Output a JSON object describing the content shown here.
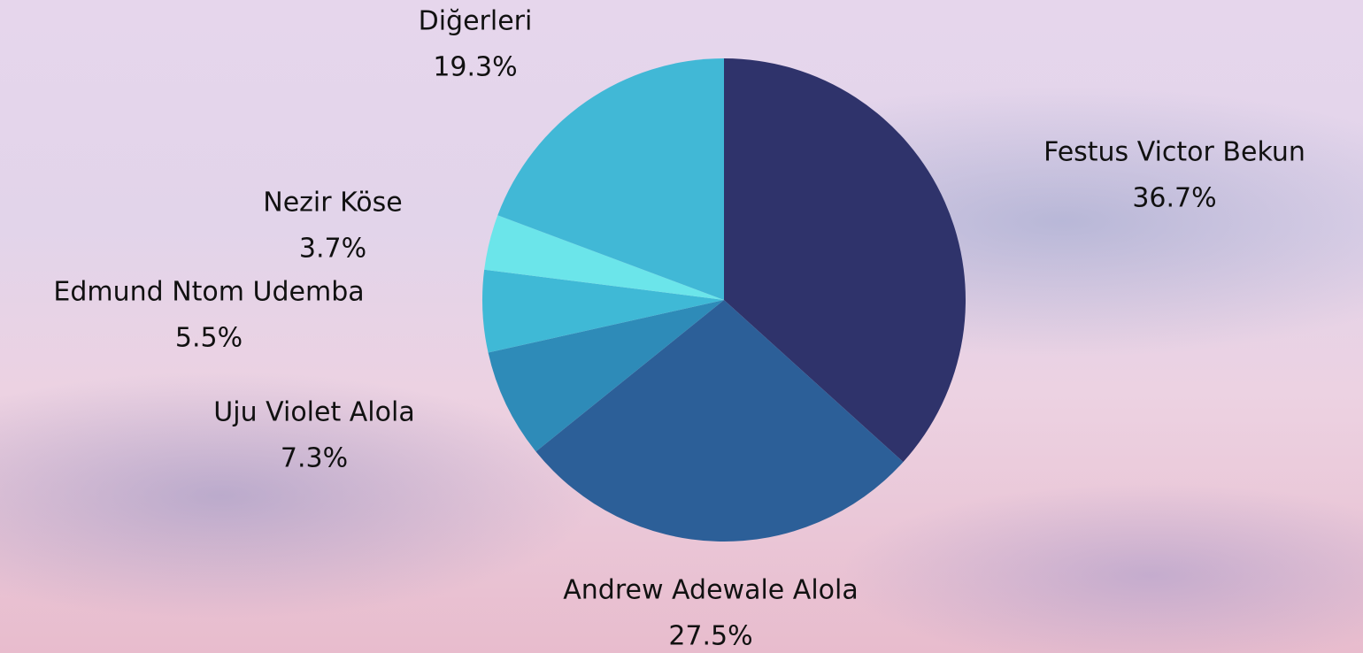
{
  "chart_data": {
    "type": "pie",
    "categories": [
      "Festus Victor Bekun",
      "Andrew Adewale Alola",
      "Uju Violet Alola",
      "Edmund Ntom Udemba",
      "Nezir Köse",
      "Diğerleri"
    ],
    "values": [
      36.7,
      27.5,
      7.3,
      5.5,
      3.7,
      19.3
    ],
    "value_labels": [
      "36.7%",
      "27.5%",
      "7.3%",
      "5.5%",
      "3.7%",
      "19.3%"
    ],
    "colors": [
      "#2f336b",
      "#2c5f98",
      "#2e8bb8",
      "#3fb9d6",
      "#6be5ea",
      "#41b8d6"
    ]
  }
}
